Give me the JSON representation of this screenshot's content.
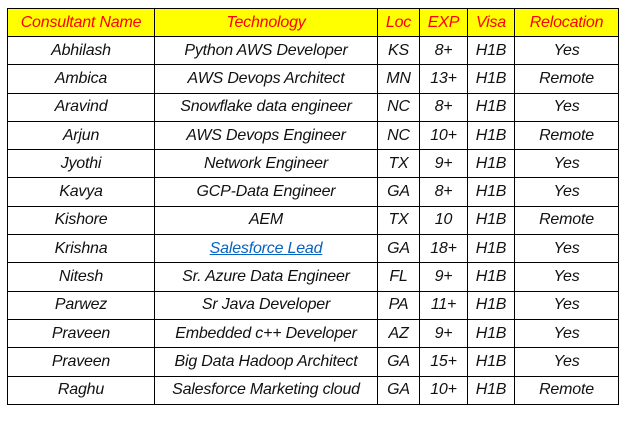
{
  "table": {
    "header_bg": "#ffff00",
    "header_color": "#ff0000",
    "link_color": "#0563c1",
    "columns": [
      "Consultant Name",
      "Technology",
      "Loc",
      "EXP",
      "Visa",
      "Relocation"
    ],
    "rows": [
      {
        "name": "Abhilash",
        "technology": "Python AWS Developer",
        "loc": "KS",
        "exp": "8+",
        "visa": "H1B",
        "relocation": "Yes"
      },
      {
        "name": "Ambica",
        "technology": "AWS Devops Architect",
        "loc": "MN",
        "exp": "13+",
        "visa": "H1B",
        "relocation": "Remote"
      },
      {
        "name": "Aravind",
        "technology": "Snowflake data engineer",
        "loc": "NC",
        "exp": "8+",
        "visa": "H1B",
        "relocation": "Yes"
      },
      {
        "name": "Arjun",
        "technology": "AWS Devops Engineer",
        "loc": "NC",
        "exp": "10+",
        "visa": "H1B",
        "relocation": "Remote"
      },
      {
        "name": "Jyothi",
        "technology": "Network Engineer",
        "loc": "TX",
        "exp": "9+",
        "visa": "H1B",
        "relocation": "Yes"
      },
      {
        "name": "Kavya",
        "technology": "GCP-Data Engineer",
        "loc": "GA",
        "exp": "8+",
        "visa": "H1B",
        "relocation": "Yes"
      },
      {
        "name": "Kishore",
        "technology": "AEM",
        "loc": "TX",
        "exp": "10",
        "visa": "H1B",
        "relocation": "Remote"
      },
      {
        "name": "Krishna",
        "technology": "Salesforce Lead",
        "technology_is_link": true,
        "loc": "GA",
        "exp": "18+",
        "visa": "H1B",
        "relocation": "Yes"
      },
      {
        "name": "Nitesh",
        "technology": "Sr. Azure Data Engineer",
        "loc": "FL",
        "exp": "9+",
        "visa": "H1B",
        "relocation": "Yes"
      },
      {
        "name": "Parwez",
        "technology": "Sr Java Developer",
        "loc": "PA",
        "exp": "11+",
        "visa": "H1B",
        "relocation": "Yes"
      },
      {
        "name": "Praveen",
        "technology": "Embedded c++ Developer",
        "loc": "AZ",
        "exp": "9+",
        "visa": "H1B",
        "relocation": "Yes"
      },
      {
        "name": "Praveen",
        "technology": "Big Data Hadoop Architect",
        "loc": "GA",
        "exp": "15+",
        "visa": "H1B",
        "relocation": "Yes"
      },
      {
        "name": "Raghu",
        "technology": "Salesforce Marketing cloud",
        "loc": "GA",
        "exp": "10+",
        "visa": "H1B",
        "relocation": "Remote"
      }
    ]
  }
}
